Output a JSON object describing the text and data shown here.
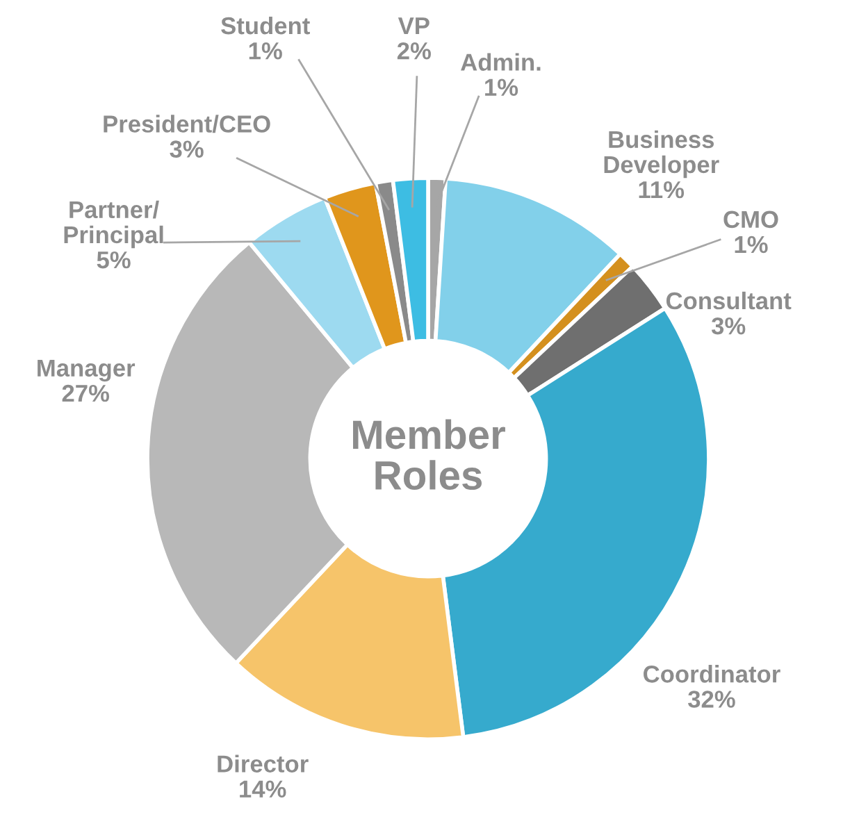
{
  "chart_data": {
    "type": "donut",
    "title": "Member Roles",
    "categories": [
      "Admin.",
      "Business Developer",
      "CMO",
      "Consultant",
      "Coordinator",
      "Director",
      "Manager",
      "Partner/Principal",
      "President/CEO",
      "Student",
      "VP"
    ],
    "values": [
      1,
      11,
      1,
      3,
      32,
      14,
      27,
      5,
      3,
      1,
      2
    ],
    "value_labels": [
      "1%",
      "11%",
      "1%",
      "3%",
      "32%",
      "14%",
      "27%",
      "5%",
      "3%",
      "1%",
      "2%"
    ],
    "colors": [
      "#a6a6a6",
      "#82d0ea",
      "#d4901e",
      "#6f6f6f",
      "#36aacd",
      "#f6c46a",
      "#b8b8b8",
      "#9ddaf0",
      "#e0961c",
      "#8a8a8a",
      "#3dbde3"
    ]
  }
}
